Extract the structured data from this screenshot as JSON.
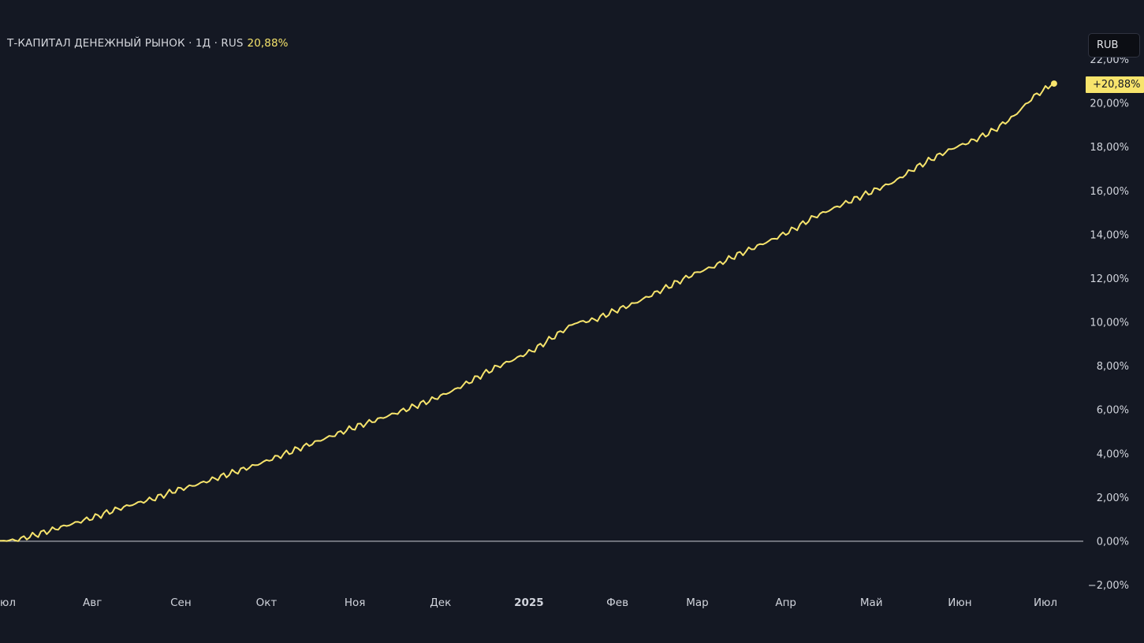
{
  "header": {
    "instrument": "Т-КАПИТАЛ ДЕНЕЖНЫЙ РЫНОК · 1Д · RUS",
    "change": "20,88%"
  },
  "currency_button": "RUB",
  "last_value_label": "+20,88%",
  "colors": {
    "background": "#141823",
    "line": "#f7e46c",
    "axis_text": "#d1d4dc",
    "zero_line": "#c9ccd4"
  },
  "chart_data": {
    "type": "line",
    "title": "",
    "xlabel": "",
    "ylabel": "",
    "ylim": [
      -2,
      22
    ],
    "y_ticks": [
      -2,
      0,
      2,
      4,
      6,
      8,
      10,
      12,
      14,
      16,
      18,
      20,
      22
    ],
    "y_tick_labels": [
      "−2,00%",
      "0,00%",
      "2,00%",
      "4,00%",
      "6,00%",
      "8,00%",
      "10,00%",
      "12,00%",
      "14,00%",
      "16,00%",
      "18,00%",
      "20,00%",
      "22,00%"
    ],
    "x_ticks": [
      "Июл",
      "Авг",
      "Сен",
      "Окт",
      "Ноя",
      "Дек",
      "2025",
      "Фев",
      "Мар",
      "Апр",
      "Май",
      "Июн",
      "Июл"
    ],
    "x_tick_dates": [
      "2024-07-01",
      "2024-08-01",
      "2024-09-01",
      "2024-10-01",
      "2024-11-01",
      "2024-12-01",
      "2025-01-01",
      "2025-02-01",
      "2025-03-01",
      "2025-04-01",
      "2025-05-01",
      "2025-06-01",
      "2025-07-01"
    ],
    "bold_x_tick": "2025",
    "zero_line": true,
    "grid": false,
    "series": [
      {
        "x": [
          "2024-06-28",
          "2024-07-05",
          "2024-07-12",
          "2024-07-19",
          "2024-07-26",
          "2024-08-02",
          "2024-08-09",
          "2024-08-16",
          "2024-08-23",
          "2024-08-30",
          "2024-09-06",
          "2024-09-13",
          "2024-09-20",
          "2024-09-27",
          "2024-10-04",
          "2024-10-11",
          "2024-10-18",
          "2024-10-25",
          "2024-11-01",
          "2024-11-08",
          "2024-11-15",
          "2024-11-22",
          "2024-11-29",
          "2024-12-06",
          "2024-12-13",
          "2024-12-20",
          "2024-12-27",
          "2025-01-03",
          "2025-01-10",
          "2025-01-17",
          "2025-01-24",
          "2025-01-31",
          "2025-02-07",
          "2025-02-14",
          "2025-02-21",
          "2025-02-28",
          "2025-03-07",
          "2025-03-14",
          "2025-03-21",
          "2025-03-28",
          "2025-04-04",
          "2025-04-11",
          "2025-04-18",
          "2025-04-25",
          "2025-05-02",
          "2025-05-09",
          "2025-05-16",
          "2025-05-23",
          "2025-05-30",
          "2025-06-06",
          "2025-06-13",
          "2025-06-20",
          "2025-06-27",
          "2025-07-04"
        ],
        "values": [
          0.0,
          0.03,
          0.27,
          0.55,
          0.82,
          1.1,
          1.42,
          1.7,
          1.95,
          2.3,
          2.55,
          2.85,
          3.15,
          3.45,
          3.8,
          4.15,
          4.5,
          4.85,
          5.2,
          5.5,
          5.82,
          6.15,
          6.5,
          6.9,
          7.4,
          7.9,
          8.3,
          8.75,
          9.35,
          9.95,
          10.1,
          10.5,
          10.85,
          11.3,
          11.75,
          12.2,
          12.55,
          13.0,
          13.4,
          13.8,
          14.25,
          14.8,
          15.2,
          15.6,
          16.0,
          16.4,
          17.0,
          17.5,
          17.95,
          18.3,
          18.75,
          19.4,
          20.3,
          20.88
        ],
        "last_value": 20.88
      }
    ]
  }
}
